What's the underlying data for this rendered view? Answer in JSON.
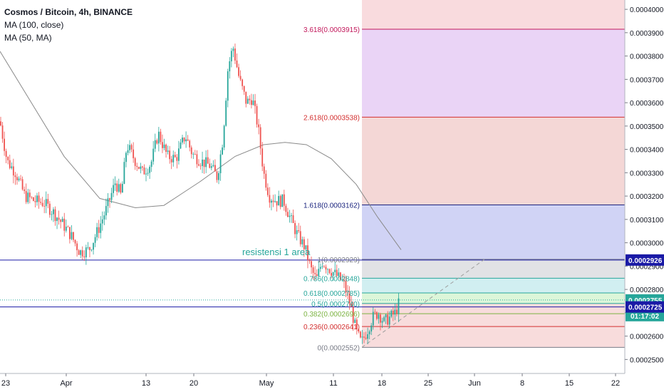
{
  "legend": {
    "symbol_line": "Cosmos / Bitcoin, 4h, BINANCE",
    "ma100_label": "MA (100, close)",
    "ma50_label": "MA (50, MA)"
  },
  "annotation": {
    "text": "resistensi 1 area"
  },
  "badges": {
    "countdown": "01:17:02"
  },
  "colors": {
    "up": "#26a69a",
    "down": "#ef5350",
    "ma": "#8a8a8a",
    "blue_line": "#1a1aa6",
    "fib_bands": [
      "#f8d7da",
      "#e6ccf5",
      "#f2d0cf",
      "#c8cbf3",
      "#dcdde0",
      "#c9ecef",
      "#d6f5d2",
      "#f7d6d6"
    ]
  },
  "chart_data": {
    "type": "candlestick",
    "symbol": "Cosmos / Bitcoin",
    "interval": "4h",
    "exchange": "BINANCE",
    "y_range": [
      0.000244,
      0.000404
    ],
    "y_ticks": [
      "0.0004000",
      "0.0003900",
      "0.0003800",
      "0.0003700",
      "0.0003600",
      "0.0003500",
      "0.0003400",
      "0.0003300",
      "0.0003200",
      "0.0003100",
      "0.0003000",
      "0.0002900",
      "0.0002800",
      "0.0002700",
      "0.0002600",
      "0.0002500"
    ],
    "x_ticks": [
      "23",
      "Apr",
      "13",
      "20",
      "May",
      "11",
      "18",
      "25",
      "Jun",
      "8",
      "15",
      "22"
    ],
    "fib_levels": [
      {
        "ratio": 3.618,
        "label": "3.618(0.0003915)",
        "price": 0.0003915,
        "color": "#c2185b"
      },
      {
        "ratio": 2.618,
        "label": "2.618(0.0003538)",
        "price": 0.0003538,
        "color": "#d32f2f"
      },
      {
        "ratio": 1.618,
        "label": "1.618(0.0003162)",
        "price": 0.0003162,
        "color": "#1a237e"
      },
      {
        "ratio": 1,
        "label": "1(0.0002929)",
        "price": 0.0002929,
        "color": "#787b86"
      },
      {
        "ratio": 0.786,
        "label": "0.786(0.0002848)",
        "price": 0.0002848,
        "color": "#26a69a"
      },
      {
        "ratio": 0.618,
        "label": "0.618(0.0002785)",
        "price": 0.0002785,
        "color": "#26a69a"
      },
      {
        "ratio": 0.5,
        "label": "0.5(0.0002740)",
        "price": 0.000274,
        "color": "#26a69a"
      },
      {
        "ratio": 0.382,
        "label": "0.382(0.0002696)",
        "price": 0.0002696,
        "color": "#7cb342"
      },
      {
        "ratio": 0.236,
        "label": "0.236(0.0002641)",
        "price": 0.0002641,
        "color": "#d32f2f"
      },
      {
        "ratio": 0,
        "label": "0(0.0002552)",
        "price": 0.0002552,
        "color": "#787b86"
      }
    ],
    "horizontal_lines": [
      {
        "price": 0.0002926,
        "label": "0.0002926",
        "color": "#1a1aa6"
      },
      {
        "price": 0.0002725,
        "label": "0.0002725",
        "color": "#1a1aa6"
      }
    ],
    "last_price": {
      "price": 0.0002755,
      "label": "0.0002755",
      "color": "#26a69a"
    },
    "ma100": {
      "name": "MA (100, close)",
      "points": [
        [
          0,
          0.000382
        ],
        [
          40,
          0.000362
        ],
        [
          90,
          0.000337
        ],
        [
          140,
          0.000319
        ],
        [
          190,
          0.000315
        ],
        [
          230,
          0.000316
        ],
        [
          280,
          0.000326
        ],
        [
          330,
          0.000337
        ],
        [
          370,
          0.000342
        ],
        [
          400,
          0.000343
        ],
        [
          430,
          0.000342
        ],
        [
          465,
          0.000336
        ],
        [
          500,
          0.000325
        ],
        [
          530,
          0.000311
        ],
        [
          563,
          0.000297
        ]
      ]
    },
    "candles_close_path": [
      [
        0,
        0.000352
      ],
      [
        10,
        0.000335
      ],
      [
        22,
        0.00033
      ],
      [
        35,
        0.00032
      ],
      [
        48,
        0.000318
      ],
      [
        62,
        0.000317
      ],
      [
        75,
        0.000313
      ],
      [
        88,
        0.000308
      ],
      [
        100,
        0.000303
      ],
      [
        112,
        0.000296
      ],
      [
        125,
        0.000297
      ],
      [
        137,
        0.000305
      ],
      [
        150,
        0.000315
      ],
      [
        162,
        0.000326
      ],
      [
        170,
        0.00032
      ],
      [
        178,
        0.000342
      ],
      [
        190,
        0.000335
      ],
      [
        200,
        0.00033
      ],
      [
        212,
        0.000334
      ],
      [
        222,
        0.000347
      ],
      [
        235,
        0.000337
      ],
      [
        247,
        0.000336
      ],
      [
        260,
        0.000346
      ],
      [
        270,
        0.000338
      ],
      [
        282,
        0.000335
      ],
      [
        295,
        0.000333
      ],
      [
        305,
        0.000328
      ],
      [
        313,
        0.000345
      ],
      [
        320,
        0.000375
      ],
      [
        327,
        0.000384
      ],
      [
        336,
        0.00037
      ],
      [
        346,
        0.00036
      ],
      [
        354,
        0.000362
      ],
      [
        362,
        0.00035
      ],
      [
        370,
        0.00033
      ],
      [
        378,
        0.00032
      ],
      [
        388,
        0.000318
      ],
      [
        398,
        0.000318
      ],
      [
        408,
        0.00031
      ],
      [
        418,
        0.000303
      ],
      [
        428,
        0.000298
      ],
      [
        436,
        0.000289
      ],
      [
        444,
        0.000284
      ],
      [
        452,
        0.000292
      ],
      [
        462,
        0.000289
      ],
      [
        472,
        0.000286
      ],
      [
        482,
        0.000283
      ],
      [
        492,
        0.000273
      ],
      [
        500,
        0.000262
      ],
      [
        507,
        0.000257
      ],
      [
        515,
        0.000262
      ],
      [
        523,
        0.000268
      ],
      [
        531,
        0.00027
      ],
      [
        539,
        0.000266
      ],
      [
        547,
        0.000268
      ],
      [
        555,
        0.00027
      ],
      [
        562,
        0.000276
      ]
    ]
  }
}
